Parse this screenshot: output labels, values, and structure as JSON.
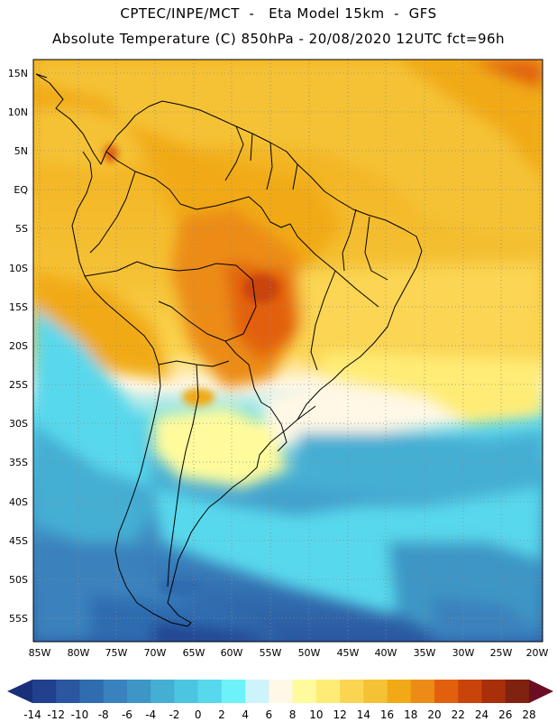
{
  "header": {
    "line1": "CPTEC/INPE/MCT  -   Eta Model 15km  -  GFS",
    "line2": "Absolute Temperature (C) 850hPa - 20/08/2020 12UTC fct=96h"
  },
  "map": {
    "lat_labels": [
      "15N",
      "10N",
      "5N",
      "EQ",
      "5S",
      "10S",
      "15S",
      "20S",
      "25S",
      "30S",
      "35S",
      "40S",
      "45S",
      "50S",
      "55S"
    ],
    "lon_labels": [
      "85W",
      "80W",
      "75W",
      "70W",
      "65W",
      "60W",
      "55W",
      "50W",
      "45W",
      "40W",
      "35W",
      "30W",
      "25W",
      "20W"
    ]
  },
  "colorbar": {
    "levels": [
      "-14",
      "-12",
      "-10",
      "-8",
      "-6",
      "-4",
      "-2",
      "0",
      "2",
      "4",
      "6",
      "8",
      "10",
      "12",
      "14",
      "16",
      "18",
      "20",
      "22",
      "24",
      "26",
      "28"
    ],
    "colors": [
      "#21418f",
      "#2a57a0",
      "#2f6cb0",
      "#3a82bd",
      "#3d96c6",
      "#45aed3",
      "#4cc6e0",
      "#58d8ec",
      "#6cf2f8",
      "#cdf3fb",
      "#fff8e6",
      "#fffb9c",
      "#ffec76",
      "#fbd552",
      "#f5c236",
      "#f1aa15",
      "#ec8c17",
      "#e2600d",
      "#c9440b",
      "#a82f09",
      "#7f2210"
    ],
    "under_color": "#1a2f7a",
    "over_color": "#6a0d25"
  }
}
